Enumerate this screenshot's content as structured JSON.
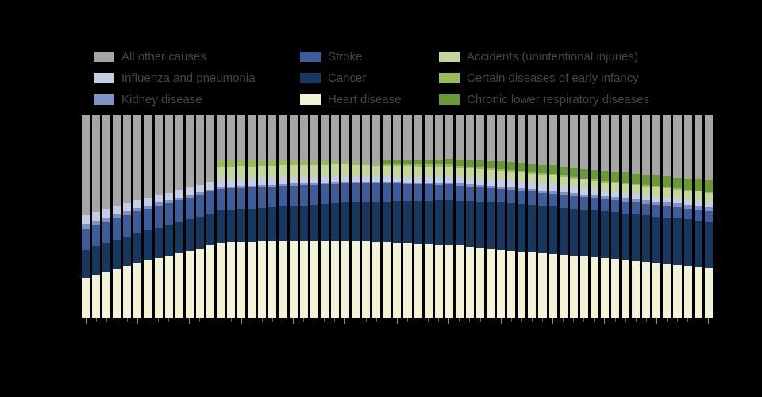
{
  "page": {
    "background_color": "#000000",
    "legend_text_color": "#454545"
  },
  "legend": {
    "position": "top",
    "columns": [
      {
        "items": [
          {
            "key": "other",
            "label": "All other causes"
          },
          {
            "key": "influenza",
            "label": "Influenza and pneumonia"
          },
          {
            "key": "kidney",
            "label": "Kidney disease"
          }
        ]
      },
      {
        "items": [
          {
            "key": "stroke",
            "label": "Stroke"
          },
          {
            "key": "cancer",
            "label": "Cancer"
          },
          {
            "key": "heart",
            "label": "Heart disease"
          }
        ]
      },
      {
        "items": [
          {
            "key": "accidents",
            "label": "Accidents (unintentional injuries)"
          },
          {
            "key": "infancy",
            "label": "Certain diseases of early infancy"
          },
          {
            "key": "chronic",
            "label": "Chronic lower respiratory diseases"
          }
        ]
      }
    ]
  },
  "chart_data": {
    "type": "bar",
    "stacked": true,
    "stack_total": 100,
    "orientation": "vertical",
    "grid": false,
    "legend_position": "top",
    "x_range": [
      1950,
      2010
    ],
    "x_step": 1,
    "axis": {
      "x_major_ticks": [
        1950,
        1955,
        1960,
        1965,
        1970,
        1975,
        1980,
        1985,
        1990,
        1995,
        2000,
        2005,
        2010
      ],
      "y_visible_labels": false
    },
    "series": [
      {
        "key": "heart",
        "name": "Heart disease",
        "color": "#f2f2d6",
        "values": [
          19.5,
          21,
          22.5,
          24,
          25.5,
          27,
          28.2,
          29.4,
          30.6,
          31.8,
          33,
          34.3,
          35.7,
          37,
          37.1,
          37.3,
          37.4,
          37.6,
          37.7,
          37.9,
          38,
          38,
          38,
          38,
          38,
          38,
          37.8,
          37.6,
          37.4,
          37.2,
          37,
          36.8,
          36.6,
          36.4,
          36.2,
          36,
          35.5,
          35,
          34.5,
          34,
          33.5,
          33.1,
          32.7,
          32.3,
          31.9,
          31.5,
          31.1,
          30.7,
          30.3,
          29.9,
          29.5,
          29,
          28.5,
          28,
          27.5,
          27,
          26.5,
          26,
          25.5,
          25,
          24.5
        ]
      },
      {
        "key": "cancer",
        "name": "Cancer",
        "color": "#17375e",
        "values": [
          14,
          14.2,
          14.3,
          14.5,
          14.6,
          14.8,
          14.9,
          15.1,
          15.2,
          15.4,
          15.5,
          15.7,
          15.8,
          16,
          16.1,
          16.3,
          16.4,
          16.6,
          16.7,
          16.9,
          17,
          17.4,
          17.7,
          18.1,
          18.4,
          18.8,
          19.1,
          19.5,
          19.8,
          20.2,
          20.5,
          20.8,
          21.1,
          21.4,
          21.7,
          22,
          22.3,
          22.6,
          22.9,
          23.2,
          23.5,
          23.5,
          23.4,
          23.4,
          23.3,
          23.3,
          23.2,
          23.2,
          23.1,
          23.1,
          23,
          23,
          23,
          23,
          23,
          23,
          23,
          23,
          23,
          23,
          23
        ]
      },
      {
        "key": "stroke",
        "name": "Stroke",
        "color": "#3e5c99",
        "values": [
          10.5,
          10.5,
          10.6,
          10.6,
          10.6,
          10.7,
          10.7,
          10.7,
          10.8,
          10.8,
          10.8,
          10.7,
          10.7,
          10.6,
          10.6,
          10.5,
          10.4,
          10.4,
          10.3,
          10.3,
          10.2,
          10,
          9.9,
          9.7,
          9.6,
          9.4,
          9.2,
          9.1,
          8.9,
          8.8,
          8.6,
          8.4,
          8.2,
          8,
          7.8,
          7.7,
          7.5,
          7.3,
          7.1,
          6.9,
          6.7,
          6.6,
          6.6,
          6.5,
          6.4,
          6.4,
          6.3,
          6.2,
          6.1,
          6.1,
          6,
          5.9,
          5.8,
          5.8,
          5.7,
          5.6,
          5.5,
          5.4,
          5.4,
          5.3,
          5.2
        ]
      },
      {
        "key": "kidney",
        "name": "Kidney disease",
        "color": "#7e93c4",
        "values": [
          2.2,
          2.1,
          2,
          2,
          1.9,
          1.8,
          1.7,
          1.6,
          1.4,
          1.3,
          1.2,
          1.2,
          1.1,
          1.1,
          1.1,
          1.1,
          1,
          1,
          1,
          0.9,
          0.9,
          0.9,
          0.9,
          0.9,
          0.9,
          0.9,
          0.8,
          0.8,
          0.8,
          0.8,
          0.8,
          0.8,
          0.8,
          0.9,
          0.9,
          0.9,
          0.9,
          0.9,
          1,
          1,
          1,
          1.1,
          1.1,
          1.2,
          1.2,
          1.3,
          1.3,
          1.4,
          1.4,
          1.5,
          1.5,
          1.6,
          1.6,
          1.7,
          1.7,
          1.8,
          1.8,
          1.9,
          1.9,
          2,
          2
        ]
      },
      {
        "key": "influenza",
        "name": "Influenza and pneumonia",
        "color": "#c5cde4",
        "values": [
          4.4,
          4.3,
          4.2,
          4,
          3.9,
          3.8,
          3.8,
          3.8,
          3.7,
          3.7,
          3.7,
          3.7,
          3.6,
          3.6,
          3.5,
          3.5,
          3.4,
          3.4,
          3.3,
          3.3,
          3.2,
          3.1,
          3.1,
          3,
          3,
          2.9,
          2.9,
          2.8,
          2.8,
          2.7,
          2.7,
          2.8,
          2.9,
          3,
          3.1,
          3.2,
          3.3,
          3.4,
          3.5,
          3.6,
          3.7,
          3.7,
          3.7,
          3.6,
          3.6,
          3.6,
          3.4,
          3.2,
          3.1,
          2.9,
          2.7,
          2.7,
          2.7,
          2.6,
          2.6,
          2.6,
          2.5,
          2.4,
          2.2,
          2.1,
          2
        ]
      },
      {
        "key": "accidents",
        "name": "Accidents (unintentional injuries)",
        "color": "#c3d69b",
        "values": [
          0,
          0,
          0,
          0,
          0,
          0,
          0,
          0,
          0,
          0,
          0,
          0,
          0,
          6.2,
          6.2,
          6.1,
          6.1,
          6.1,
          6,
          6,
          6,
          5.9,
          5.9,
          5.8,
          5.7,
          5.7,
          5.6,
          5.5,
          5.4,
          5.4,
          5.3,
          5.2,
          5.1,
          5,
          4.9,
          4.8,
          4.7,
          4.6,
          4.5,
          4.4,
          4.3,
          4.3,
          4.3,
          4.2,
          4.2,
          4.2,
          4.2,
          4.1,
          4.1,
          4.1,
          4.1,
          4.2,
          4.3,
          4.3,
          4.4,
          4.5,
          4.6,
          4.6,
          4.7,
          4.8,
          4.9
        ]
      },
      {
        "key": "infancy",
        "name": "Certain diseases of early infancy",
        "color": "#9bbb59",
        "values": [
          0,
          0,
          0,
          0,
          0,
          0,
          0,
          0,
          0,
          0,
          0,
          0,
          0,
          3.4,
          3.2,
          3.1,
          2.9,
          2.7,
          2.6,
          2.4,
          2.2,
          2,
          1.8,
          1.7,
          1.5,
          1.3,
          1.3,
          1.2,
          1.2,
          1.1,
          1.1,
          1.1,
          1,
          1,
          1,
          1,
          0.9,
          0.9,
          0.9,
          0.8,
          0.8,
          0.8,
          0.8,
          0.7,
          0.7,
          0.7,
          0.7,
          0.6,
          0.6,
          0.6,
          0.6,
          0.6,
          0.6,
          0.6,
          0.6,
          0.5,
          0.5,
          0.5,
          0.5,
          0.5,
          0.5
        ]
      },
      {
        "key": "chronic",
        "name": "Chronic lower respiratory diseases",
        "color": "#699a36",
        "values": [
          0,
          0,
          0,
          0,
          0,
          0,
          0,
          0,
          0,
          0,
          0,
          0,
          0,
          0,
          0,
          0,
          0,
          0,
          0,
          0,
          0,
          0,
          0,
          0,
          0,
          0,
          0,
          0,
          0,
          1.4,
          1.6,
          1.9,
          2.1,
          2.3,
          2.6,
          2.8,
          3,
          3.1,
          3.3,
          3.4,
          3.6,
          3.7,
          3.9,
          4,
          4.2,
          4.3,
          4.4,
          4.6,
          4.7,
          4.9,
          5,
          5.1,
          5.1,
          5.2,
          5.2,
          5.3,
          5.4,
          5.4,
          5.5,
          5.5,
          5.6
        ]
      },
      {
        "key": "other",
        "name": "All other causes",
        "color": "#a6a6a6",
        "values_rule": "remainder_to_100"
      }
    ]
  }
}
